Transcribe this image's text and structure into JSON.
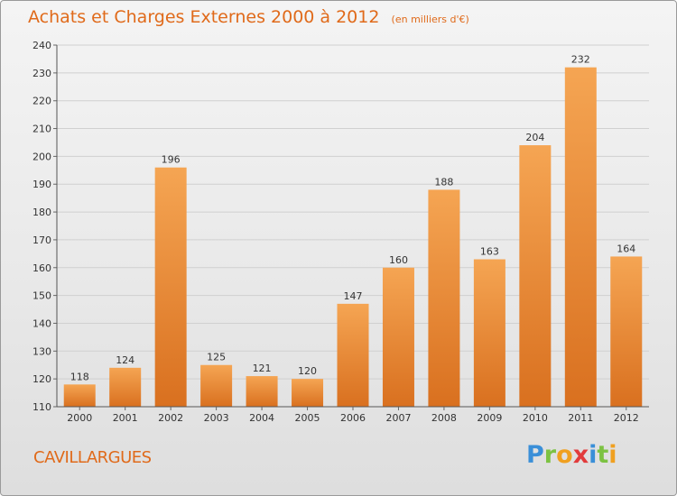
{
  "header": {
    "title": "Achats et Charges Externes 2000 à 2012",
    "unit": "(en milliers d'€)"
  },
  "footer": {
    "town": "CAVILLARGUES",
    "logo": "Proxiti"
  },
  "colors": {
    "title": "#e06a1a",
    "bar_light": "#f5a553",
    "bar_dark": "#d9701f",
    "grid": "#d0d0d0",
    "axis": "#333333"
  },
  "chart_data": {
    "type": "bar",
    "categories": [
      "2000",
      "2001",
      "2002",
      "2003",
      "2004",
      "2005",
      "2006",
      "2007",
      "2008",
      "2009",
      "2010",
      "2011",
      "2012"
    ],
    "values": [
      118,
      124,
      196,
      125,
      121,
      120,
      147,
      160,
      188,
      163,
      204,
      232,
      164
    ],
    "ylim": [
      110,
      240
    ],
    "yticks": [
      110,
      120,
      130,
      140,
      150,
      160,
      170,
      180,
      190,
      200,
      210,
      220,
      230,
      240
    ],
    "grid": true,
    "data_labels": true
  }
}
